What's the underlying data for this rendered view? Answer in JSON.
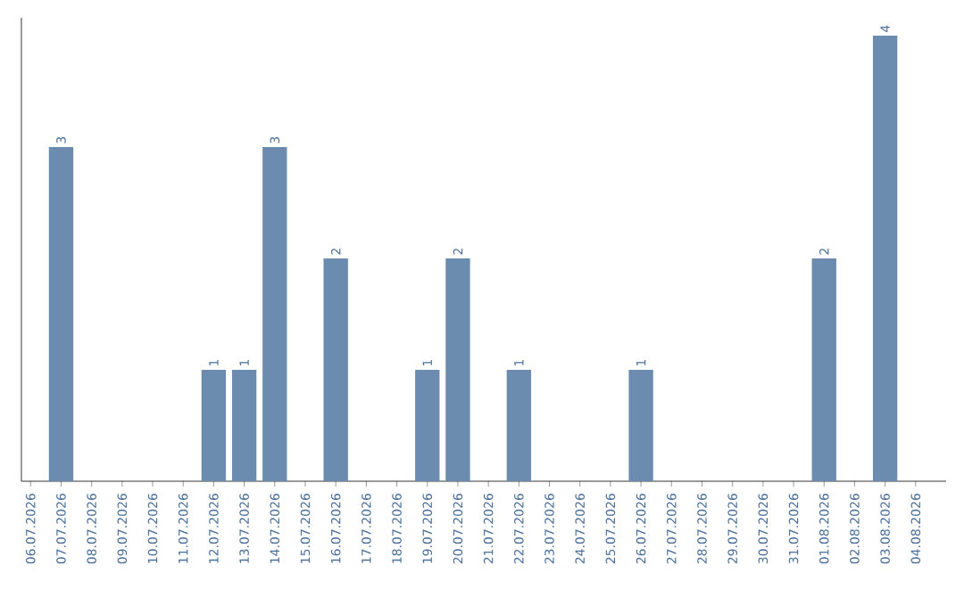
{
  "chart_data": {
    "type": "bar",
    "categories": [
      "06.07.2026",
      "07.07.2026",
      "08.07.2026",
      "09.07.2026",
      "10.07.2026",
      "11.07.2026",
      "12.07.2026",
      "13.07.2026",
      "14.07.2026",
      "15.07.2026",
      "16.07.2026",
      "17.07.2026",
      "18.07.2026",
      "19.07.2026",
      "20.07.2026",
      "21.07.2026",
      "22.07.2026",
      "23.07.2026",
      "24.07.2026",
      "25.07.2026",
      "26.07.2026",
      "27.07.2026",
      "28.07.2026",
      "29.07.2026",
      "30.07.2026",
      "31.07.2026",
      "01.08.2026",
      "02.08.2026",
      "03.08.2026",
      "04.08.2026"
    ],
    "values": [
      0,
      3,
      0,
      0,
      0,
      0,
      1,
      1,
      3,
      0,
      2,
      0,
      0,
      1,
      2,
      0,
      1,
      0,
      0,
      0,
      1,
      0,
      0,
      0,
      0,
      0,
      2,
      0,
      4,
      0
    ],
    "value_labels": [
      null,
      "3",
      null,
      null,
      null,
      null,
      "1",
      "1",
      "3",
      null,
      "2",
      null,
      null,
      "1",
      "2",
      null,
      "1",
      null,
      null,
      null,
      "1",
      null,
      null,
      null,
      null,
      null,
      "2",
      null,
      "4",
      null
    ],
    "color": "#6b8cae"
  }
}
